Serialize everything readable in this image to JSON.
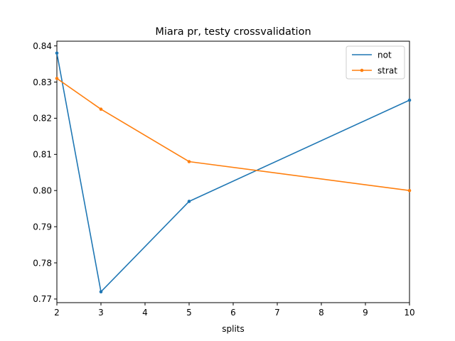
{
  "chart_data": {
    "type": "line",
    "title": "Miara pr, testy crossvalidation",
    "xlabel": "splits",
    "ylabel": "",
    "xlim": [
      2,
      10
    ],
    "ylim": [
      0.769,
      0.8413
    ],
    "xticks": [
      2,
      3,
      4,
      5,
      6,
      7,
      8,
      9,
      10
    ],
    "yticks": [
      0.77,
      0.78,
      0.79,
      0.8,
      0.81,
      0.82,
      0.83,
      0.84
    ],
    "ytick_labels": [
      "0.77",
      "0.78",
      "0.79",
      "0.80",
      "0.81",
      "0.82",
      "0.83",
      "0.84"
    ],
    "grid": false,
    "legend_position": "top-right",
    "series": [
      {
        "name": "not",
        "color": "#1f77b4",
        "marker": "point",
        "x": [
          2,
          3,
          5,
          10
        ],
        "y": [
          0.838,
          0.772,
          0.797,
          0.825
        ]
      },
      {
        "name": "strat",
        "color": "#ff7f0e",
        "marker": "point",
        "x": [
          2,
          3,
          5,
          10
        ],
        "y": [
          0.831,
          0.8225,
          0.808,
          0.8
        ]
      }
    ]
  }
}
